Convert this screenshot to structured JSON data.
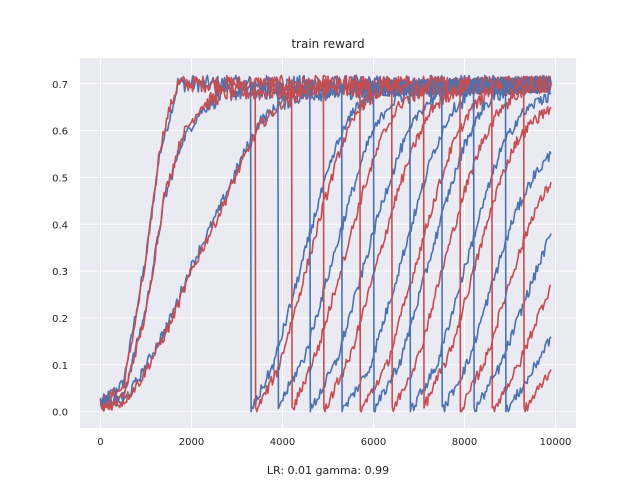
{
  "chart_data": {
    "type": "line",
    "title": "train reward",
    "xlabel": "LR: 0.01 gamma: 0.99",
    "ylabel": "",
    "xlim": [
      -450,
      10450
    ],
    "ylim": [
      -0.035,
      0.755
    ],
    "xticks": [
      0,
      2000,
      4000,
      6000,
      8000,
      10000
    ],
    "xtick_labels": [
      "0",
      "2000",
      "4000",
      "6000",
      "8000",
      "10000"
    ],
    "yticks": [
      0.0,
      0.1,
      0.2,
      0.3,
      0.4,
      0.5,
      0.6,
      0.7
    ],
    "ytick_labels": [
      "0.0",
      "0.1",
      "0.2",
      "0.3",
      "0.4",
      "0.5",
      "0.6",
      "0.7"
    ],
    "grid": true,
    "background": "#eaeaf2",
    "colors": {
      "blue": "#4c72b0",
      "red": "#c44e52"
    },
    "series": [
      {
        "color": "#4c72b0",
        "points": [
          [
            0,
            0.02
          ],
          [
            500,
            0.06
          ],
          [
            1000,
            0.33
          ],
          [
            1300,
            0.55
          ],
          [
            1500,
            0.62
          ],
          [
            1700,
            0.7
          ],
          [
            9900,
            0.7
          ]
        ]
      },
      {
        "color": "#c44e52",
        "points": [
          [
            0,
            0.02
          ],
          [
            500,
            0.05
          ],
          [
            1000,
            0.32
          ],
          [
            1300,
            0.56
          ],
          [
            1500,
            0.64
          ],
          [
            1700,
            0.7
          ],
          [
            9900,
            0.7
          ]
        ]
      },
      {
        "color": "#4c72b0",
        "points": [
          [
            0,
            0.02
          ],
          [
            500,
            0.03
          ],
          [
            1000,
            0.22
          ],
          [
            1400,
            0.45
          ],
          [
            1800,
            0.58
          ],
          [
            2200,
            0.64
          ],
          [
            2700,
            0.68
          ],
          [
            9900,
            0.7
          ]
        ]
      },
      {
        "color": "#c44e52",
        "points": [
          [
            0,
            0.01
          ],
          [
            500,
            0.03
          ],
          [
            1000,
            0.21
          ],
          [
            1400,
            0.46
          ],
          [
            1800,
            0.59
          ],
          [
            2200,
            0.65
          ],
          [
            2700,
            0.68
          ],
          [
            9900,
            0.7
          ]
        ]
      },
      {
        "color": "#4c72b0",
        "points": [
          [
            0,
            0.02
          ],
          [
            500,
            0.02
          ],
          [
            900,
            0.08
          ],
          [
            1500,
            0.19
          ],
          [
            2000,
            0.31
          ],
          [
            2600,
            0.43
          ],
          [
            3100,
            0.54
          ],
          [
            3500,
            0.62
          ],
          [
            4000,
            0.66
          ],
          [
            4500,
            0.68
          ],
          [
            9900,
            0.7
          ]
        ]
      },
      {
        "color": "#c44e52",
        "points": [
          [
            0,
            0.01
          ],
          [
            500,
            0.02
          ],
          [
            900,
            0.07
          ],
          [
            1500,
            0.18
          ],
          [
            2000,
            0.3
          ],
          [
            2600,
            0.42
          ],
          [
            3100,
            0.53
          ],
          [
            3500,
            0.61
          ],
          [
            4000,
            0.66
          ],
          [
            4500,
            0.69
          ],
          [
            9900,
            0.7
          ]
        ]
      },
      {
        "color": "#4c72b0",
        "points": [
          [
            3300,
            0.7
          ],
          [
            3310,
            0.0
          ],
          [
            3800,
            0.1
          ],
          [
            4300,
            0.27
          ],
          [
            4800,
            0.45
          ],
          [
            5200,
            0.57
          ],
          [
            5600,
            0.65
          ],
          [
            6100,
            0.69
          ],
          [
            9900,
            0.7
          ]
        ]
      },
      {
        "color": "#c44e52",
        "points": [
          [
            3400,
            0.7
          ],
          [
            3410,
            0.0
          ],
          [
            3900,
            0.09
          ],
          [
            4400,
            0.26
          ],
          [
            4900,
            0.44
          ],
          [
            5300,
            0.57
          ],
          [
            5700,
            0.65
          ],
          [
            6200,
            0.69
          ],
          [
            9900,
            0.7
          ]
        ]
      },
      {
        "color": "#4c72b0",
        "points": [
          [
            3900,
            0.7
          ],
          [
            3910,
            0.01
          ],
          [
            4500,
            0.12
          ],
          [
            5000,
            0.29
          ],
          [
            5500,
            0.46
          ],
          [
            5900,
            0.58
          ],
          [
            6300,
            0.65
          ],
          [
            6800,
            0.69
          ],
          [
            9900,
            0.7
          ]
        ]
      },
      {
        "color": "#c44e52",
        "points": [
          [
            4200,
            0.7
          ],
          [
            4210,
            0.0
          ],
          [
            4800,
            0.14
          ],
          [
            5300,
            0.31
          ],
          [
            5800,
            0.48
          ],
          [
            6200,
            0.59
          ],
          [
            6600,
            0.66
          ],
          [
            7100,
            0.69
          ],
          [
            9900,
            0.7
          ]
        ]
      },
      {
        "color": "#4c72b0",
        "points": [
          [
            4600,
            0.7
          ],
          [
            4610,
            0.0
          ],
          [
            5200,
            0.11
          ],
          [
            5700,
            0.28
          ],
          [
            6200,
            0.45
          ],
          [
            6600,
            0.56
          ],
          [
            7000,
            0.64
          ],
          [
            7500,
            0.69
          ],
          [
            9900,
            0.7
          ]
        ]
      },
      {
        "color": "#c44e52",
        "points": [
          [
            4900,
            0.7
          ],
          [
            4910,
            0.0
          ],
          [
            5500,
            0.12
          ],
          [
            6000,
            0.29
          ],
          [
            6500,
            0.46
          ],
          [
            6900,
            0.57
          ],
          [
            7300,
            0.65
          ],
          [
            7800,
            0.69
          ],
          [
            9900,
            0.7
          ]
        ]
      },
      {
        "color": "#4c72b0",
        "points": [
          [
            5300,
            0.7
          ],
          [
            5310,
            0.0
          ],
          [
            5900,
            0.09
          ],
          [
            6400,
            0.25
          ],
          [
            6900,
            0.42
          ],
          [
            7300,
            0.55
          ],
          [
            7700,
            0.64
          ],
          [
            8200,
            0.69
          ],
          [
            9900,
            0.7
          ]
        ]
      },
      {
        "color": "#c44e52",
        "points": [
          [
            5700,
            0.7
          ],
          [
            5710,
            0.0
          ],
          [
            6300,
            0.1
          ],
          [
            6800,
            0.27
          ],
          [
            7300,
            0.44
          ],
          [
            7700,
            0.56
          ],
          [
            8100,
            0.64
          ],
          [
            8600,
            0.69
          ],
          [
            9900,
            0.7
          ]
        ]
      },
      {
        "color": "#4c72b0",
        "points": [
          [
            6000,
            0.7
          ],
          [
            6010,
            0.0
          ],
          [
            6600,
            0.11
          ],
          [
            7100,
            0.28
          ],
          [
            7600,
            0.45
          ],
          [
            8000,
            0.57
          ],
          [
            8400,
            0.65
          ],
          [
            8900,
            0.69
          ],
          [
            9900,
            0.7
          ]
        ]
      },
      {
        "color": "#c44e52",
        "points": [
          [
            6400,
            0.7
          ],
          [
            6410,
            0.0
          ],
          [
            7000,
            0.12
          ],
          [
            7500,
            0.3
          ],
          [
            8000,
            0.47
          ],
          [
            8400,
            0.58
          ],
          [
            8800,
            0.65
          ],
          [
            9300,
            0.69
          ],
          [
            9900,
            0.7
          ]
        ]
      },
      {
        "color": "#4c72b0",
        "points": [
          [
            6800,
            0.7
          ],
          [
            6810,
            0.0
          ],
          [
            7400,
            0.1
          ],
          [
            7900,
            0.27
          ],
          [
            8400,
            0.44
          ],
          [
            8800,
            0.56
          ],
          [
            9200,
            0.63
          ],
          [
            9700,
            0.67
          ],
          [
            9900,
            0.68
          ]
        ]
      },
      {
        "color": "#c44e52",
        "points": [
          [
            7100,
            0.7
          ],
          [
            7110,
            0.01
          ],
          [
            7700,
            0.13
          ],
          [
            8200,
            0.3
          ],
          [
            8700,
            0.47
          ],
          [
            9100,
            0.57
          ],
          [
            9500,
            0.62
          ],
          [
            9900,
            0.65
          ]
        ]
      },
      {
        "color": "#4c72b0",
        "points": [
          [
            7500,
            0.7
          ],
          [
            7510,
            0.0
          ],
          [
            8100,
            0.11
          ],
          [
            8600,
            0.27
          ],
          [
            9100,
            0.42
          ],
          [
            9500,
            0.5
          ],
          [
            9900,
            0.55
          ]
        ]
      },
      {
        "color": "#c44e52",
        "points": [
          [
            7900,
            0.7
          ],
          [
            7910,
            0.0
          ],
          [
            8500,
            0.12
          ],
          [
            9000,
            0.28
          ],
          [
            9500,
            0.42
          ],
          [
            9900,
            0.49
          ]
        ]
      },
      {
        "color": "#4c72b0",
        "points": [
          [
            8200,
            0.7
          ],
          [
            8210,
            0.0
          ],
          [
            8800,
            0.1
          ],
          [
            9300,
            0.23
          ],
          [
            9700,
            0.33
          ],
          [
            9900,
            0.38
          ]
        ]
      },
      {
        "color": "#c44e52",
        "points": [
          [
            8600,
            0.7
          ],
          [
            8610,
            0.0
          ],
          [
            9200,
            0.1
          ],
          [
            9600,
            0.2
          ],
          [
            9900,
            0.27
          ]
        ]
      },
      {
        "color": "#4c72b0",
        "points": [
          [
            8900,
            0.7
          ],
          [
            8910,
            0.0
          ],
          [
            9400,
            0.07
          ],
          [
            9900,
            0.16
          ]
        ]
      },
      {
        "color": "#c44e52",
        "points": [
          [
            9300,
            0.7
          ],
          [
            9310,
            0.0
          ],
          [
            9700,
            0.06
          ],
          [
            9900,
            0.09
          ]
        ]
      }
    ]
  }
}
